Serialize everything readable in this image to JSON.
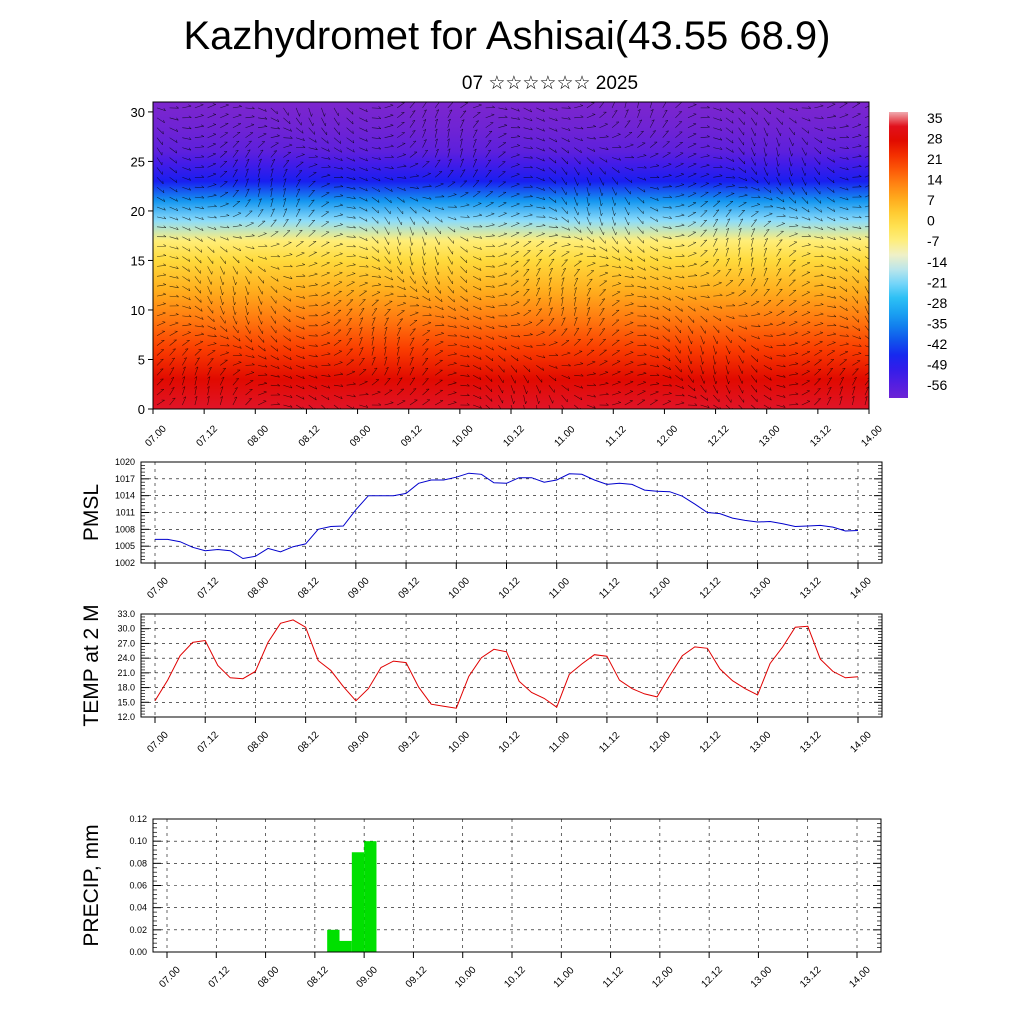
{
  "header": {
    "title": "Kazhydromet for Ashisai(43.55 68.9)",
    "subtitle": "07 ☆☆☆☆☆☆ 2025"
  },
  "chart_data": [
    {
      "type": "heatmap",
      "name": "cross-section",
      "ylabel": "",
      "y_ticks": [
        0,
        5,
        10,
        15,
        20,
        25,
        30
      ],
      "ylim": [
        0,
        31
      ],
      "x_ticks": [
        "07.00",
        "07.12",
        "08.00",
        "08.12",
        "09.00",
        "09.12",
        "10.00",
        "10.12",
        "11.00",
        "11.12",
        "12.00",
        "12.12",
        "13.00",
        "13.12",
        "14.00"
      ],
      "colorbar_ticks": [
        35,
        28,
        21,
        14,
        7,
        0,
        -7,
        -14,
        -21,
        -28,
        -35,
        -42,
        -49,
        -56
      ],
      "colorbar_range": [
        -63,
        38
      ],
      "temperature_profile": [
        [
          0,
          35
        ],
        [
          3,
          28
        ],
        [
          6,
          21
        ],
        [
          9,
          14
        ],
        [
          12,
          7
        ],
        [
          15,
          0
        ],
        [
          17,
          -7
        ],
        [
          19,
          -21
        ],
        [
          21,
          -35
        ],
        [
          23,
          -49
        ],
        [
          25,
          -56
        ],
        [
          26,
          -60
        ],
        [
          28,
          -63
        ],
        [
          31,
          -66
        ]
      ],
      "wind_vectors": true
    },
    {
      "type": "line",
      "name": "pmsl",
      "ylabel": "PMSL",
      "ylim": [
        1002,
        1020
      ],
      "y_ticks": [
        1002,
        1005,
        1008,
        1011,
        1014,
        1017,
        1020
      ],
      "x_ticks": [
        "07.00",
        "07.12",
        "08.00",
        "08.12",
        "09.00",
        "09.12",
        "10.00",
        "10.12",
        "11.00",
        "11.12",
        "12.00",
        "12.12",
        "13.00",
        "13.12",
        "14.00"
      ],
      "color": "#0000cc",
      "series": [
        {
          "x": [
            0,
            3,
            6,
            9,
            12,
            15,
            18,
            21,
            24,
            27,
            30,
            33,
            36,
            39,
            42,
            45,
            48,
            51,
            54,
            57,
            60,
            63,
            66,
            69,
            72,
            75,
            78,
            81,
            84,
            87,
            90,
            93,
            96,
            99,
            102,
            105,
            108,
            111,
            114,
            117,
            120,
            123,
            126,
            129,
            132,
            135,
            138,
            141,
            144,
            147,
            150,
            153,
            156,
            159,
            162,
            165,
            168
          ],
          "values": [
            1006.2,
            1006.2,
            1005.8,
            1004.8,
            1004.2,
            1004.4,
            1004.2,
            1002.8,
            1003.2,
            1004.6,
            1004.0,
            1004.9,
            1005.4,
            1008.0,
            1008.5,
            1008.6,
            1011.5,
            1014.0,
            1014.0,
            1014.0,
            1014.4,
            1016.2,
            1016.8,
            1016.8,
            1017.3,
            1018.0,
            1017.8,
            1016.3,
            1016.2,
            1017.2,
            1017.2,
            1016.4,
            1016.8,
            1017.9,
            1017.8,
            1016.8,
            1016.0,
            1016.2,
            1016.0,
            1015.0,
            1014.8,
            1014.7,
            1013.9,
            1012.5,
            1011.0,
            1010.8,
            1010.0,
            1009.6,
            1009.3,
            1009.4,
            1009.0,
            1008.5,
            1008.6,
            1008.7,
            1008.4,
            1007.7,
            1007.8
          ]
        }
      ]
    },
    {
      "type": "line",
      "name": "temp",
      "ylabel": "TEMP at 2 M",
      "ylim": [
        12,
        33
      ],
      "y_ticks": [
        "12.0",
        "15.0",
        "18.0",
        "21.0",
        "24.0",
        "27.0",
        "30.0",
        "33.0"
      ],
      "x_ticks": [
        "07.00",
        "07.12",
        "08.00",
        "08.12",
        "09.00",
        "09.12",
        "10.00",
        "10.12",
        "11.00",
        "11.12",
        "12.00",
        "12.12",
        "13.00",
        "13.12",
        "14.00"
      ],
      "color": "#e00000",
      "series": [
        {
          "x": [
            0,
            3,
            6,
            9,
            12,
            15,
            18,
            21,
            24,
            27,
            30,
            33,
            36,
            39,
            42,
            45,
            48,
            51,
            54,
            57,
            60,
            63,
            66,
            69,
            72,
            75,
            78,
            81,
            84,
            87,
            90,
            93,
            96,
            99,
            102,
            105,
            108,
            111,
            114,
            117,
            120,
            123,
            126,
            129,
            132,
            135,
            138,
            141,
            144,
            147,
            150,
            153,
            156,
            159,
            162,
            165,
            168
          ],
          "values": [
            15.3,
            19.5,
            24.5,
            27.2,
            27.6,
            22.5,
            20.0,
            19.8,
            21.3,
            27.2,
            31.1,
            31.8,
            30.3,
            23.5,
            21.5,
            18.2,
            15.3,
            17.8,
            22.1,
            23.4,
            23.1,
            18.1,
            14.6,
            14.2,
            13.8,
            20.3,
            24.1,
            25.8,
            25.3,
            19.3,
            17.0,
            15.8,
            14.0,
            20.7,
            22.8,
            24.7,
            24.4,
            19.5,
            17.8,
            16.7,
            16.1,
            20.4,
            24.5,
            26.3,
            26.0,
            21.8,
            19.4,
            17.8,
            16.5,
            22.9,
            26.3,
            30.3,
            30.5,
            23.8,
            21.3,
            20.0,
            20.2
          ]
        }
      ]
    },
    {
      "type": "bar",
      "name": "precip",
      "ylabel": "PRECIP, mm",
      "ylim": [
        0,
        0.12
      ],
      "y_ticks": [
        "0.00",
        "0.02",
        "0.04",
        "0.06",
        "0.08",
        "0.10",
        "0.12"
      ],
      "x_ticks": [
        "07.00",
        "07.12",
        "08.00",
        "08.12",
        "09.00",
        "09.12",
        "10.00",
        "10.12",
        "11.00",
        "11.12",
        "12.00",
        "12.12",
        "13.00",
        "13.12",
        "14.00"
      ],
      "color": "#00e000",
      "bars": [
        {
          "start": 39,
          "end": 42,
          "value": 0.02
        },
        {
          "start": 42,
          "end": 45,
          "value": 0.01
        },
        {
          "start": 45,
          "end": 48,
          "value": 0.09
        },
        {
          "start": 48,
          "end": 51,
          "value": 0.1
        }
      ]
    }
  ]
}
